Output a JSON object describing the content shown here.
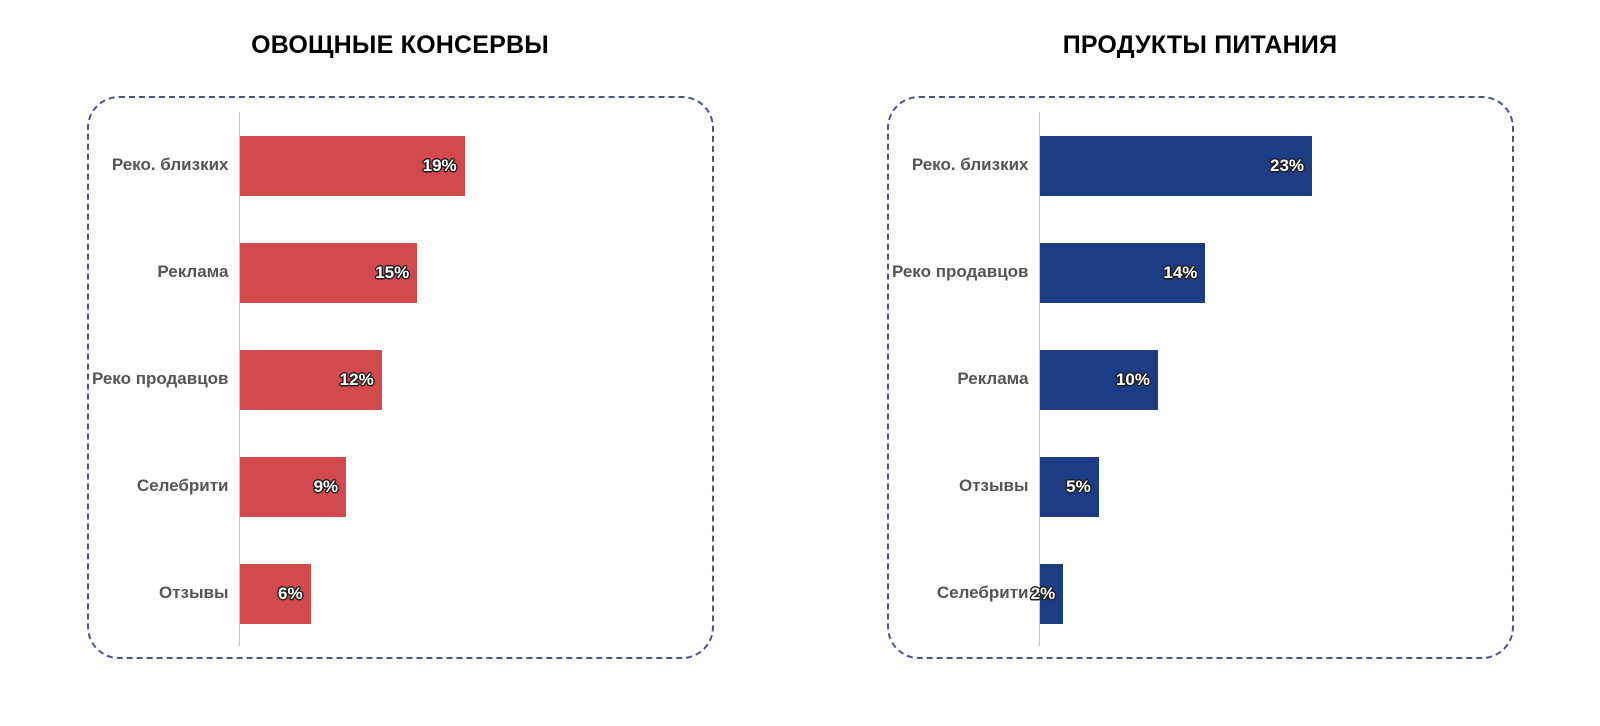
{
  "page": {
    "background": "#ffffff"
  },
  "styles": {
    "border_color": "#47558f",
    "axis_color": "#c6c6c6",
    "category_label_color": "#555555",
    "title_color": "#000000",
    "value_label_color": "#ffffff"
  },
  "chart_data": [
    {
      "type": "bar",
      "orientation": "horizontal",
      "title": "ОВОЩНЫЕ КОНСЕРВЫ",
      "categories": [
        "Реко. близких",
        "Реклама",
        "Реко продавцов",
        "Селебрити",
        "Отзывы"
      ],
      "values": [
        19,
        15,
        12,
        9,
        6
      ],
      "data_labels": [
        "19%",
        "15%",
        "12%",
        "9%",
        "6%"
      ],
      "bar_color": "#d2494e",
      "xlim": [
        0,
        25
      ],
      "grid": false,
      "legend": "none"
    },
    {
      "type": "bar",
      "orientation": "horizontal",
      "title": "ПРОДУКТЫ ПИТАНИЯ",
      "categories": [
        "Реко. близких",
        "Реко продавцов",
        "Реклама",
        "Отзывы",
        "Селебрити"
      ],
      "values": [
        23,
        14,
        10,
        5,
        2
      ],
      "data_labels": [
        "23%",
        "14%",
        "10%",
        "5%",
        "2%"
      ],
      "bar_color": "#1c3c85",
      "xlim": [
        0,
        25
      ],
      "grid": false,
      "legend": "none"
    }
  ]
}
